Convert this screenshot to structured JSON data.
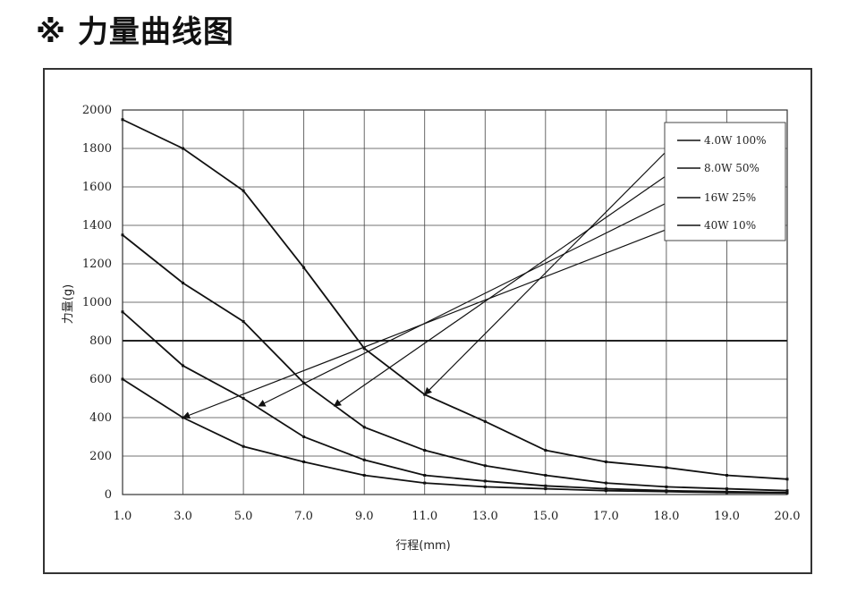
{
  "page": {
    "title": "※ 力量曲线图"
  },
  "chart_data": {
    "type": "line",
    "title": "",
    "xlabel": "行程(mm)",
    "ylabel": "力量(g)",
    "x_tick_labels": [
      "1.0",
      "3.0",
      "5.0",
      "7.0",
      "9.0",
      "11.0",
      "13.0",
      "15.0",
      "17.0",
      "18.0",
      "19.0",
      "20.0"
    ],
    "y_ticks": [
      0,
      200,
      400,
      600,
      800,
      1000,
      1200,
      1400,
      1600,
      1800,
      2000
    ],
    "ylim": [
      0,
      2000
    ],
    "grid": true,
    "reference_line_y": 800,
    "legend_position": "top-right",
    "series": [
      {
        "name": "4.0W  100%",
        "values": [
          1950,
          1800,
          1580,
          1180,
          760,
          520,
          380,
          230,
          170,
          140,
          100,
          80
        ]
      },
      {
        "name": "8.0W   50%",
        "values": [
          1350,
          1100,
          900,
          580,
          350,
          230,
          150,
          100,
          60,
          40,
          30,
          20
        ]
      },
      {
        "name": "16W    25%",
        "values": [
          950,
          670,
          500,
          300,
          180,
          100,
          70,
          45,
          30,
          20,
          15,
          10
        ]
      },
      {
        "name": "40W    10%",
        "values": [
          600,
          400,
          250,
          170,
          100,
          60,
          40,
          30,
          20,
          15,
          10,
          8
        ]
      }
    ],
    "annotations": [
      {
        "series": "4.0W  100%",
        "points_to_x": "11.0",
        "points_to_y": 520
      },
      {
        "series": "8.0W   50%",
        "points_to_x": "8.0",
        "points_to_y": 460
      },
      {
        "series": "16W    25%",
        "points_to_x": "5.5",
        "points_to_y": 460
      },
      {
        "series": "40W    10%",
        "points_to_x": "3.0",
        "points_to_y": 400
      }
    ]
  }
}
